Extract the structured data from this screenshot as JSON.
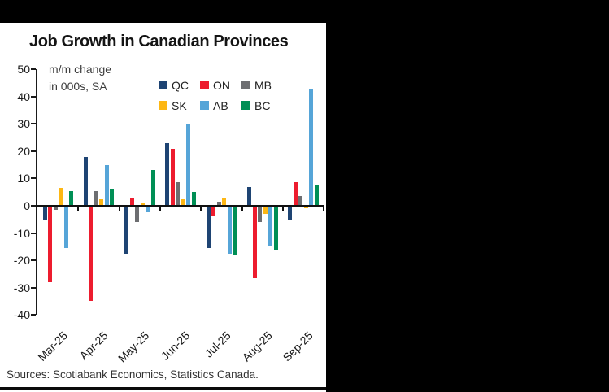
{
  "window": {
    "background_color": "#000000",
    "panel_color": "#ffffff"
  },
  "chart_data": {
    "type": "bar",
    "title": "Job Growth in Canadian Provinces",
    "subtitle_lines": [
      "m/m change",
      "in 000s, SA"
    ],
    "source": "Sources: Scotiabank Economics, Statistics Canada.",
    "categories": [
      "Mar-25",
      "Apr-25",
      "May-25",
      "Jun-25",
      "Jul-25",
      "Aug-25",
      "Sep-25"
    ],
    "series": [
      {
        "name": "QC",
        "color": "#1e4473",
        "values": [
          -5,
          18,
          -17.5,
          23,
          -15.5,
          7,
          -5
        ]
      },
      {
        "name": "ON",
        "color": "#ed1c2e",
        "values": [
          -28,
          -35,
          3,
          21,
          -4,
          -26.5,
          8.5
        ]
      },
      {
        "name": "MB",
        "color": "#6d6e71",
        "values": [
          -1.5,
          5.5,
          -6,
          8.5,
          1.5,
          -6,
          3.5
        ]
      },
      {
        "name": "SK",
        "color": "#fdb714",
        "values": [
          6.5,
          2.5,
          1,
          2.5,
          3,
          -3,
          -1
        ]
      },
      {
        "name": "AB",
        "color": "#56a5d8",
        "values": [
          -15.5,
          15,
          -2.5,
          30,
          -17.5,
          -14.5,
          42.5
        ]
      },
      {
        "name": "BC",
        "color": "#008f55",
        "values": [
          5.5,
          6,
          13,
          5,
          -18,
          -16,
          7.5
        ]
      }
    ],
    "xlabel": "",
    "ylabel": "",
    "ylim": [
      -40,
      50
    ],
    "ytick_interval": 10,
    "yticks": [
      50,
      40,
      30,
      20,
      10,
      0,
      -10,
      -20,
      -30,
      -40
    ],
    "grid": false,
    "legend_position": "top-right",
    "legend_rows": [
      [
        "QC",
        "ON",
        "MB"
      ],
      [
        "SK",
        "AB",
        "BC"
      ]
    ]
  }
}
